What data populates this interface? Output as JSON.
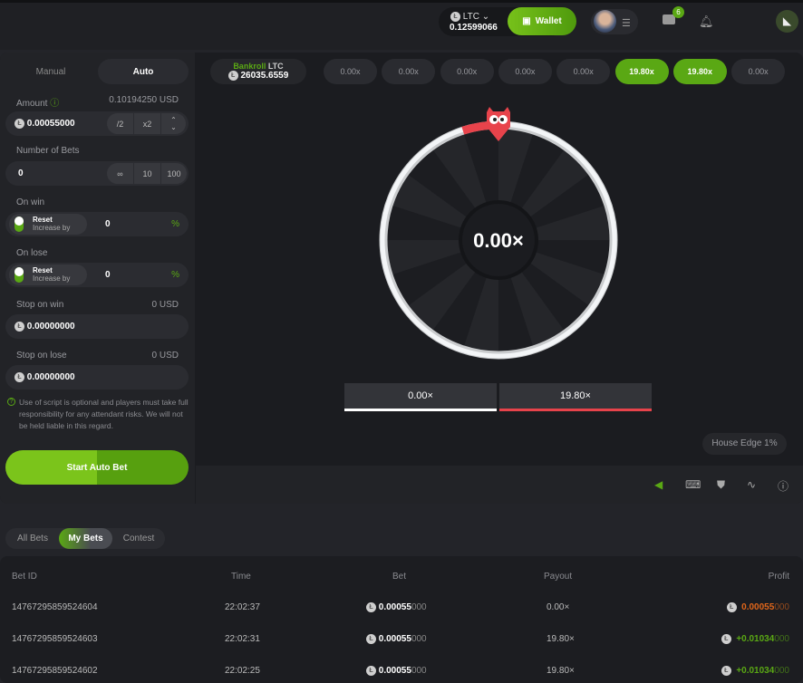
{
  "header": {
    "currency": "LTC",
    "balance": "0.12599066",
    "wallet_label": "Wallet",
    "notification_count": "6"
  },
  "mode_tabs": [
    "Manual",
    "Auto"
  ],
  "form": {
    "amount_label": "Amount",
    "amount_usd": "0.10194250 USD",
    "amount_value": "0.00055000",
    "half": "/2",
    "double": "x2",
    "bets_label": "Number of Bets",
    "bets_value": "0",
    "infinite": "∞",
    "ten": "10",
    "hundred": "100",
    "on_win_label": "On win",
    "on_lose_label": "On lose",
    "reset": "Reset",
    "increase_by": "Increase by",
    "win_value": "0",
    "lose_value": "0",
    "percent": "%",
    "stop_win_label": "Stop on win",
    "stop_win_usd": "0 USD",
    "stop_win_value": "0.00000000",
    "stop_lose_label": "Stop on lose",
    "stop_lose_usd": "0 USD",
    "stop_lose_value": "0.00000000",
    "disclaimer": "Use of script is optional and players must take full responsibility for any attendant risks. We will not be held liable in this regard.",
    "start_label": "Start Auto Bet"
  },
  "bankroll": {
    "label": "Bankroll",
    "currency": "LTC",
    "value": "26035.6559"
  },
  "history": [
    {
      "v": "0.00x",
      "win": false
    },
    {
      "v": "0.00x",
      "win": false
    },
    {
      "v": "0.00x",
      "win": false
    },
    {
      "v": "0.00x",
      "win": false
    },
    {
      "v": "0.00x",
      "win": false
    },
    {
      "v": "19.80x",
      "win": true
    },
    {
      "v": "19.80x",
      "win": true
    },
    {
      "v": "0.00x",
      "win": false
    }
  ],
  "wheel": {
    "center": "0.00×",
    "segments": 20,
    "red_segments": 1,
    "colors": {
      "red": "#e8434b",
      "white": "#f2f4f6"
    }
  },
  "results": [
    {
      "label": "0.00×",
      "color": "#ffffff"
    },
    {
      "label": "19.80×",
      "color": "#e8434b"
    }
  ],
  "house_edge": "House Edge 1%",
  "bets_tabs": [
    "All Bets",
    "My Bets",
    "Contest"
  ],
  "table": {
    "headers": [
      "Bet ID",
      "Time",
      "Bet",
      "Payout",
      "Profit"
    ],
    "rows": [
      {
        "id": "14767295859524604",
        "time": "22:02:37",
        "bet_main": "0.00055",
        "bet_tail": "000",
        "payout": "0.00×",
        "profit_main": "0.00055",
        "profit_tail": "000",
        "profit_color": "#e0661a"
      },
      {
        "id": "14767295859524603",
        "time": "22:02:31",
        "bet_main": "0.00055",
        "bet_tail": "000",
        "payout": "19.80×",
        "profit_main": "+0.01034",
        "profit_tail": "000",
        "profit_color": "#5aa814"
      },
      {
        "id": "14767295859524602",
        "time": "22:02:25",
        "bet_main": "0.00055",
        "bet_tail": "000",
        "payout": "19.80×",
        "profit_main": "+0.01034",
        "profit_tail": "000",
        "profit_color": "#5aa814"
      }
    ]
  },
  "colors": {
    "accent": "#5aa814",
    "loss": "#e0661a"
  }
}
